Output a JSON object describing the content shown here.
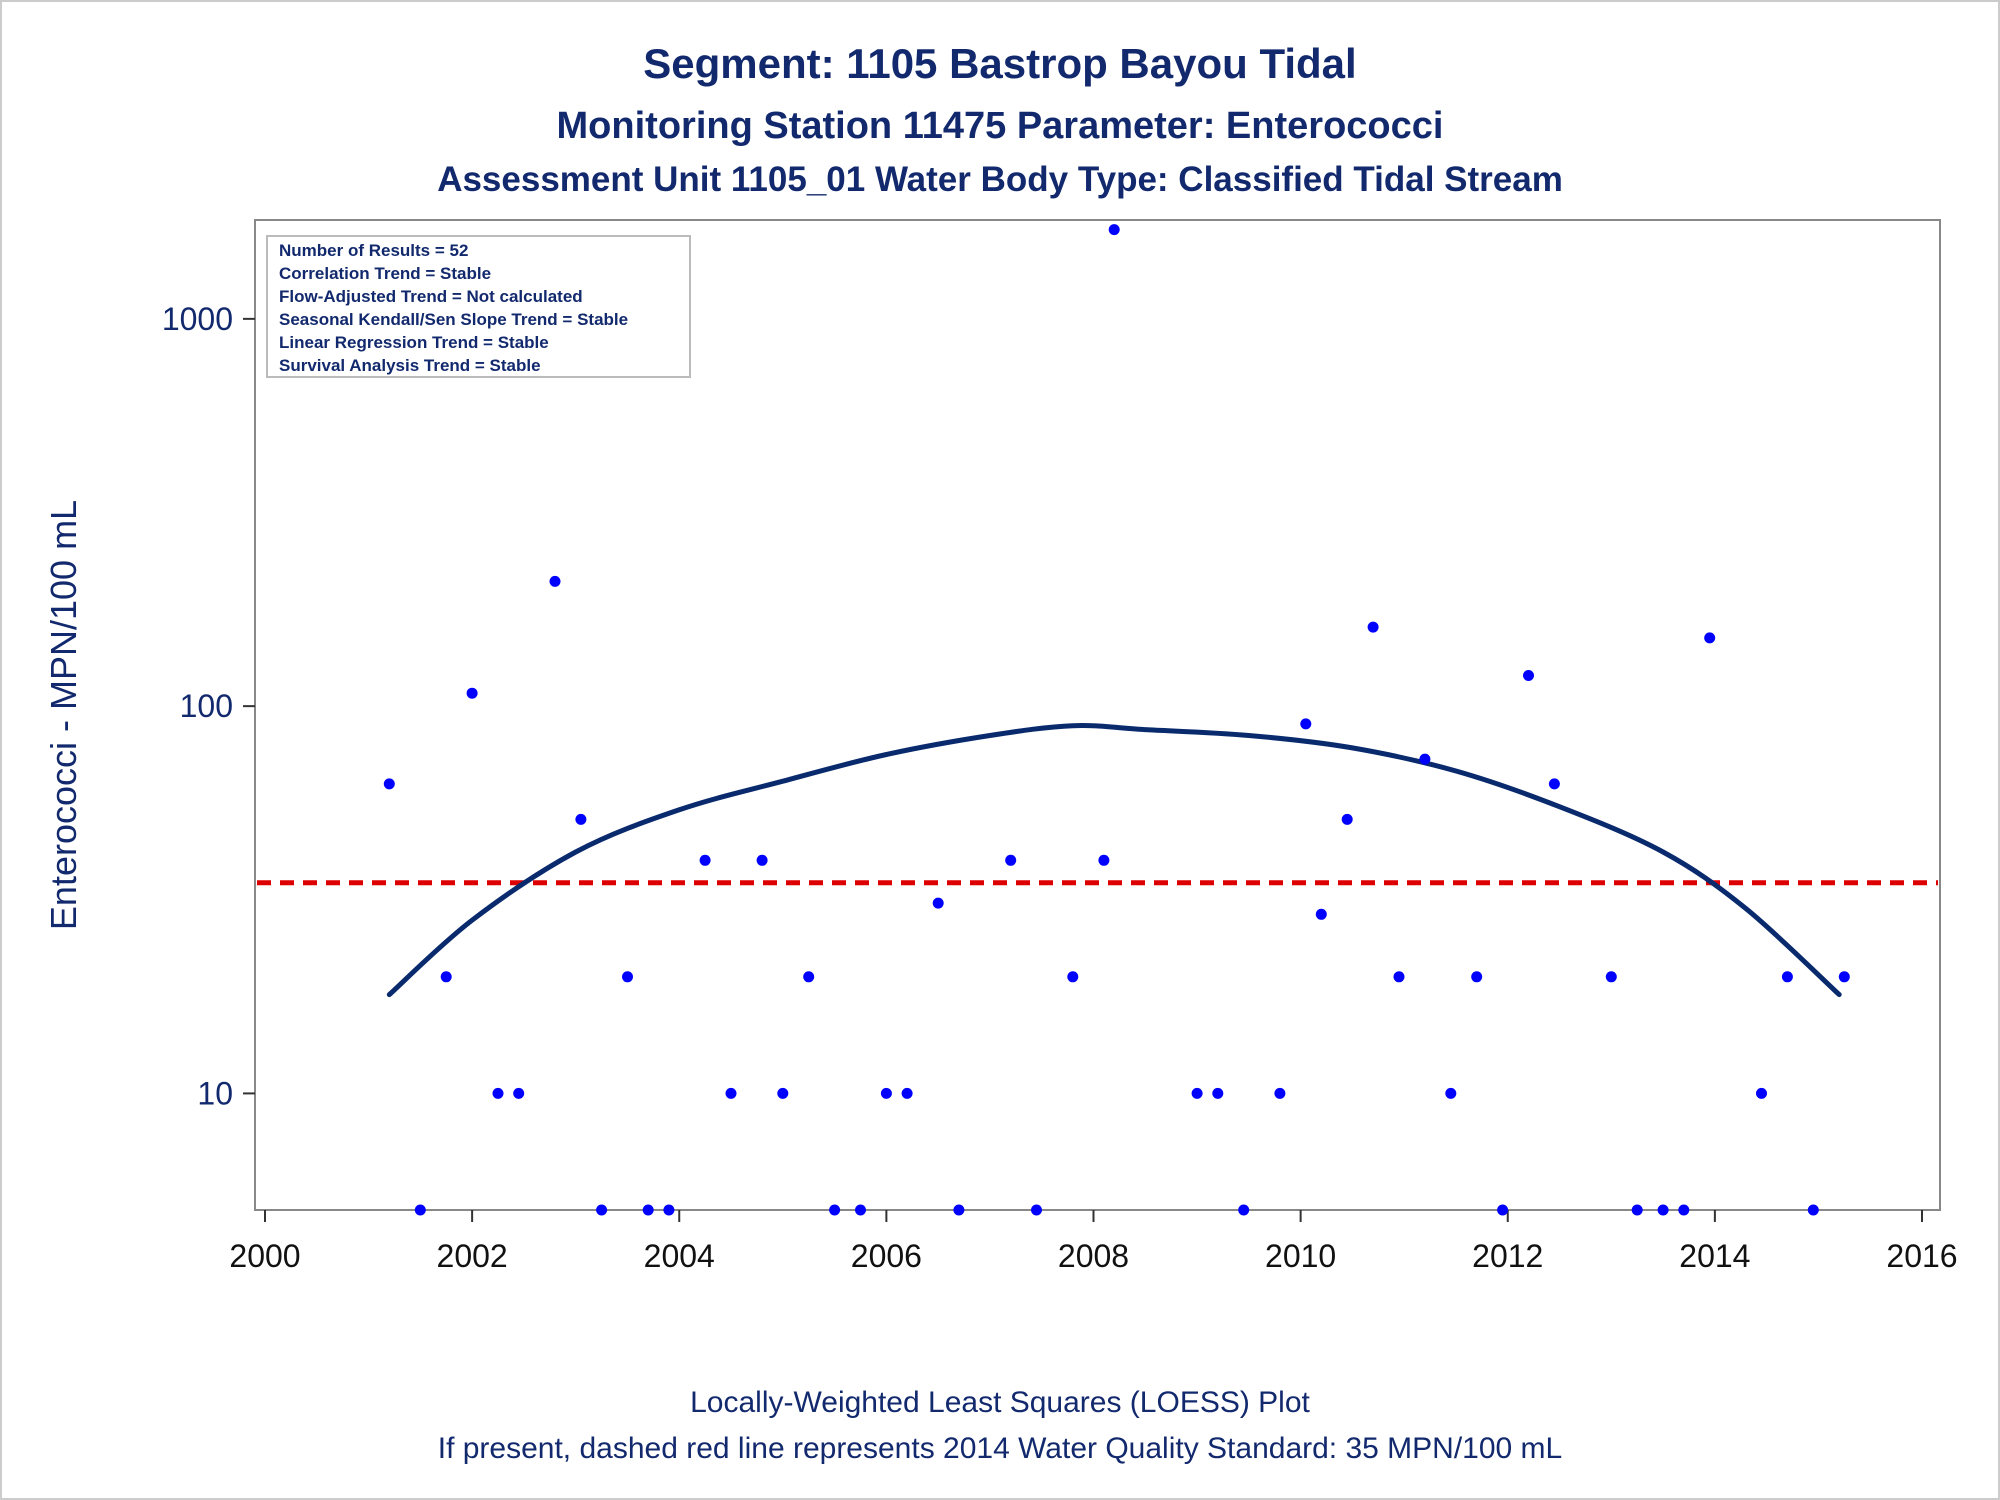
{
  "chart_data": {
    "type": "scatter",
    "title": "Segment: 1105  Bastrop Bayou Tidal",
    "subtitle": "Monitoring Station 11475 Parameter: Enterococci",
    "subtitle2": "Assessment Unit 1105_01   Water Body Type: Classified Tidal Stream",
    "xlabel": "",
    "ylabel": "Enterococci - MPN/100 mL",
    "xlim": [
      2000,
      2016
    ],
    "ylim": [
      5,
      1800
    ],
    "y_scale": "log",
    "x_ticks": [
      "2000",
      "2002",
      "2004",
      "2006",
      "2008",
      "2010",
      "2012",
      "2014",
      "2016"
    ],
    "y_ticks": [
      "10",
      "100",
      "1000"
    ],
    "grid": false,
    "info_box": [
      "Number of Results = 52",
      "Correlation Trend = Stable",
      "Flow-Adjusted Trend = Not calculated",
      "Seasonal Kendall/Sen Slope Trend = Stable",
      "Linear Regression Trend = Stable",
      "Survival Analysis Trend = Stable"
    ],
    "footnote1": "Locally-Weighted Least Squares (LOESS) Plot",
    "footnote2": "If present, dashed red line represents 2014 Water Quality Standard: 35 MPN/100 mL",
    "standard": 35,
    "colors": {
      "points": "#0000ff",
      "loess": "#0a2a6e",
      "standard": "#dd0000",
      "text": "#12296e"
    },
    "series": [
      {
        "type": "scatter",
        "points": [
          [
            2001.2,
            63
          ],
          [
            2001.5,
            5
          ],
          [
            2001.75,
            20
          ],
          [
            2002.0,
            108
          ],
          [
            2002.25,
            10
          ],
          [
            2002.45,
            10
          ],
          [
            2002.8,
            210
          ],
          [
            2003.05,
            51
          ],
          [
            2003.25,
            5
          ],
          [
            2003.5,
            20
          ],
          [
            2003.7,
            5
          ],
          [
            2003.9,
            5
          ],
          [
            2004.25,
            40
          ],
          [
            2004.5,
            10
          ],
          [
            2004.8,
            40
          ],
          [
            2005.0,
            10
          ],
          [
            2005.25,
            20
          ],
          [
            2005.5,
            5
          ],
          [
            2005.75,
            5
          ],
          [
            2006.0,
            10
          ],
          [
            2006.2,
            10
          ],
          [
            2006.5,
            31
          ],
          [
            2006.7,
            5
          ],
          [
            2007.2,
            40
          ],
          [
            2007.45,
            5
          ],
          [
            2007.8,
            20
          ],
          [
            2008.1,
            40
          ],
          [
            2008.2,
            1700
          ],
          [
            2009.0,
            10
          ],
          [
            2009.2,
            10
          ],
          [
            2009.45,
            5
          ],
          [
            2009.8,
            10
          ],
          [
            2010.05,
            90
          ],
          [
            2010.2,
            29
          ],
          [
            2010.45,
            51
          ],
          [
            2010.7,
            160
          ],
          [
            2010.95,
            20
          ],
          [
            2011.2,
            73
          ],
          [
            2011.45,
            10
          ],
          [
            2011.7,
            20
          ],
          [
            2011.95,
            5
          ],
          [
            2012.2,
            120
          ],
          [
            2012.45,
            63
          ],
          [
            2013.0,
            20
          ],
          [
            2013.25,
            5
          ],
          [
            2013.5,
            5
          ],
          [
            2013.7,
            5
          ],
          [
            2013.95,
            150
          ],
          [
            2014.45,
            10
          ],
          [
            2014.7,
            20
          ],
          [
            2014.95,
            5
          ],
          [
            2015.25,
            20
          ]
        ]
      },
      {
        "type": "line",
        "smoothing": "loess",
        "x": [
          2001.2,
          2002.0,
          2003.0,
          2004.0,
          2005.0,
          2006.0,
          2007.0,
          2007.8,
          2008.5,
          2009.5,
          2010.5,
          2011.5,
          2012.5,
          2013.5,
          2014.3,
          2015.2
        ],
        "y": [
          18,
          28,
          42,
          54,
          64,
          75,
          84,
          89,
          87,
          84,
          78,
          68,
          55,
          42,
          30,
          18
        ]
      }
    ]
  }
}
